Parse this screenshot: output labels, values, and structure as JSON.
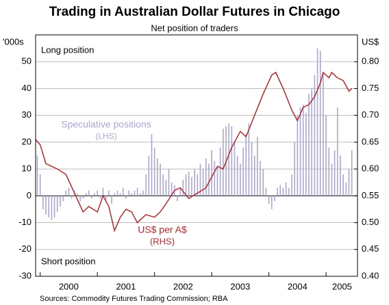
{
  "chart_data": {
    "type": "bar_line",
    "title": "Trading in Australian Dollar Futures in Chicago",
    "subtitle": "Net position of traders",
    "source": "Sources:  Commodity Futures Trading Commission; RBA",
    "y_unit": "'000s",
    "y2_unit": "US$",
    "annotations": {
      "top": "Long position",
      "bottom": "Short position",
      "bars": [
        "Speculative positions",
        "(LHS)"
      ],
      "line": [
        "US$ per A$",
        "(RHS)"
      ]
    },
    "xlim": [
      1999.92,
      2005.55
    ],
    "xticks": [
      {
        "value": 2000.5,
        "label": "2000"
      },
      {
        "value": 2001.5,
        "label": "2001"
      },
      {
        "value": 2002.5,
        "label": "2002"
      },
      {
        "value": 2003.5,
        "label": "2003"
      },
      {
        "value": 2004.5,
        "label": "2004"
      },
      {
        "value": 2005.28,
        "label": "2005"
      }
    ],
    "xtick_marks": [
      2000,
      2001,
      2002,
      2003,
      2004,
      2005
    ],
    "ylim": [
      -30,
      60
    ],
    "yticks": [
      -30,
      -20,
      -10,
      0,
      10,
      20,
      30,
      40,
      50
    ],
    "y2lim": [
      0.4,
      0.85
    ],
    "y2ticks": [
      {
        "value": 0.4,
        "label": "0.40"
      },
      0.45,
      {
        "value": 0.5,
        "label": "0.50"
      },
      0.55,
      {
        "value": 0.6,
        "label": "0.60"
      },
      0.65,
      {
        "value": 0.7,
        "label": "0.70"
      },
      0.75,
      {
        "value": 0.8,
        "label": "0.80"
      }
    ],
    "grid": true,
    "series": [
      {
        "name": "Speculative positions",
        "type": "bar",
        "color": "#a9a6d3",
        "x": [
          1999.95,
          2000.0,
          2000.05,
          2000.1,
          2000.15,
          2000.2,
          2000.25,
          2000.3,
          2000.35,
          2000.4,
          2000.45,
          2000.5,
          2000.55,
          2000.6,
          2000.65,
          2000.7,
          2000.75,
          2000.8,
          2000.85,
          2000.9,
          2000.95,
          2001.0,
          2001.05,
          2001.1,
          2001.15,
          2001.2,
          2001.25,
          2001.3,
          2001.35,
          2001.4,
          2001.45,
          2001.5,
          2001.55,
          2001.6,
          2001.65,
          2001.7,
          2001.75,
          2001.8,
          2001.85,
          2001.9,
          2001.95,
          2002.0,
          2002.05,
          2002.1,
          2002.15,
          2002.2,
          2002.25,
          2002.3,
          2002.35,
          2002.4,
          2002.45,
          2002.5,
          2002.55,
          2002.6,
          2002.65,
          2002.7,
          2002.75,
          2002.8,
          2002.85,
          2002.9,
          2002.95,
          2003.0,
          2003.05,
          2003.1,
          2003.15,
          2003.2,
          2003.25,
          2003.3,
          2003.35,
          2003.4,
          2003.45,
          2003.5,
          2003.55,
          2003.6,
          2003.65,
          2003.7,
          2003.75,
          2003.8,
          2003.85,
          2003.9,
          2003.95,
          2004.0,
          2004.05,
          2004.1,
          2004.15,
          2004.2,
          2004.25,
          2004.3,
          2004.35,
          2004.4,
          2004.45,
          2004.5,
          2004.55,
          2004.6,
          2004.65,
          2004.7,
          2004.75,
          2004.8,
          2004.85,
          2004.9,
          2004.95,
          2005.0,
          2005.05,
          2005.1,
          2005.15,
          2005.2,
          2005.25,
          2005.3,
          2005.35,
          2005.4,
          2005.45
        ],
        "values": [
          15,
          8,
          -5,
          -7,
          -8,
          -9,
          -8,
          -6,
          -4,
          -2,
          2,
          3,
          -1,
          2,
          1,
          -2,
          -1,
          1,
          2,
          -1,
          1,
          2,
          -1,
          3,
          -2,
          2,
          -3,
          1,
          2,
          1,
          3,
          -1,
          2,
          1,
          2,
          3,
          1,
          2,
          8,
          15,
          23,
          18,
          14,
          12,
          8,
          6,
          10,
          5,
          4,
          -2,
          3,
          6,
          8,
          9,
          7,
          10,
          8,
          12,
          10,
          14,
          12,
          17,
          13,
          11,
          18,
          25,
          26,
          27,
          26,
          20,
          15,
          12,
          18,
          23,
          27,
          20,
          15,
          22,
          13,
          10,
          3,
          -3,
          -5,
          -2,
          3,
          4,
          3,
          5,
          3,
          8,
          20,
          30,
          33,
          34,
          31,
          38,
          40,
          45,
          55,
          54,
          46,
          30,
          18,
          12,
          17,
          33,
          15,
          8,
          5,
          10,
          17
        ]
      },
      {
        "name": "US$ per A$",
        "type": "line",
        "axis": "y2",
        "color": "#b5272d",
        "x": [
          1999.92,
          2000.0,
          2000.1,
          2000.2,
          2000.3,
          2000.45,
          2000.6,
          2000.75,
          2000.85,
          2001.0,
          2001.1,
          2001.2,
          2001.3,
          2001.4,
          2001.5,
          2001.6,
          2001.7,
          2001.85,
          2002.0,
          2002.1,
          2002.2,
          2002.35,
          2002.45,
          2002.6,
          2002.75,
          2002.9,
          2003.0,
          2003.1,
          2003.2,
          2003.35,
          2003.5,
          2003.6,
          2003.75,
          2003.9,
          2004.05,
          2004.12,
          2004.25,
          2004.4,
          2004.5,
          2004.6,
          2004.7,
          2004.8,
          2004.9,
          2004.95,
          2005.05,
          2005.1,
          2005.2,
          2005.3,
          2005.35,
          2005.4,
          2005.45
        ],
        "values": [
          0.655,
          0.645,
          0.61,
          0.605,
          0.6,
          0.59,
          0.555,
          0.52,
          0.53,
          0.52,
          0.55,
          0.53,
          0.485,
          0.51,
          0.525,
          0.52,
          0.5,
          0.515,
          0.51,
          0.52,
          0.535,
          0.56,
          0.565,
          0.545,
          0.555,
          0.565,
          0.585,
          0.605,
          0.6,
          0.64,
          0.67,
          0.66,
          0.7,
          0.74,
          0.775,
          0.78,
          0.75,
          0.71,
          0.69,
          0.715,
          0.72,
          0.735,
          0.76,
          0.78,
          0.77,
          0.78,
          0.77,
          0.765,
          0.755,
          0.745,
          0.75
        ]
      }
    ]
  }
}
